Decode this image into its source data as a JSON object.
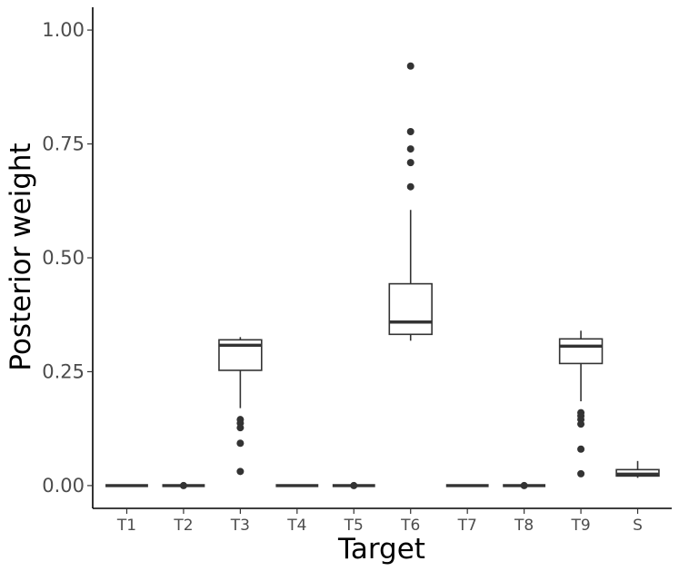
{
  "chart_data": {
    "type": "box",
    "xlabel": "Target",
    "ylabel": "Posterior weight",
    "ylim": [
      -0.05,
      1.05
    ],
    "yticks": [
      0.0,
      0.25,
      0.5,
      0.75,
      1.0
    ],
    "ytick_labels": [
      "0.00",
      "0.25",
      "0.50",
      "0.75",
      "1.00"
    ],
    "grid": false,
    "colors": {
      "line": "#333333",
      "fill": "#ffffff",
      "axis": "#000000",
      "tick_text": "#4d4d4d"
    },
    "categories": [
      "T1",
      "T2",
      "T3",
      "T4",
      "T5",
      "T6",
      "T7",
      "T8",
      "T9",
      "S"
    ],
    "boxes": [
      {
        "category": "T1",
        "min": 0.0,
        "q1": 0.0,
        "median": 0.0,
        "q3": 0.0,
        "max": 0.0,
        "outliers": []
      },
      {
        "category": "T2",
        "min": 0.0,
        "q1": 0.0,
        "median": 0.0,
        "q3": 0.0,
        "max": 0.0,
        "outliers": [
          0.0
        ]
      },
      {
        "category": "T3",
        "min": 0.17,
        "q1": 0.253,
        "median": 0.308,
        "q3": 0.32,
        "max": 0.326,
        "outliers": [
          0.145,
          0.137,
          0.127,
          0.093,
          0.031
        ]
      },
      {
        "category": "T4",
        "min": 0.0,
        "q1": 0.0,
        "median": 0.0,
        "q3": 0.0,
        "max": 0.0,
        "outliers": []
      },
      {
        "category": "T5",
        "min": 0.0,
        "q1": 0.0,
        "median": 0.0,
        "q3": 0.0,
        "max": 0.0,
        "outliers": [
          0.0
        ]
      },
      {
        "category": "T6",
        "min": 0.318,
        "q1": 0.332,
        "median": 0.359,
        "q3": 0.443,
        "max": 0.605,
        "outliers": [
          0.921,
          0.777,
          0.739,
          0.709,
          0.656
        ]
      },
      {
        "category": "T7",
        "min": 0.0,
        "q1": 0.0,
        "median": 0.0,
        "q3": 0.0,
        "max": 0.0,
        "outliers": []
      },
      {
        "category": "T8",
        "min": 0.0,
        "q1": 0.0,
        "median": 0.0,
        "q3": 0.0,
        "max": 0.0,
        "outliers": [
          0.0
        ]
      },
      {
        "category": "T9",
        "min": 0.185,
        "q1": 0.268,
        "median": 0.306,
        "q3": 0.322,
        "max": 0.34,
        "outliers": [
          0.16,
          0.153,
          0.145,
          0.135,
          0.08,
          0.026
        ]
      },
      {
        "category": "S",
        "min": 0.017,
        "q1": 0.021,
        "median": 0.025,
        "q3": 0.035,
        "max": 0.054,
        "outliers": []
      }
    ]
  }
}
